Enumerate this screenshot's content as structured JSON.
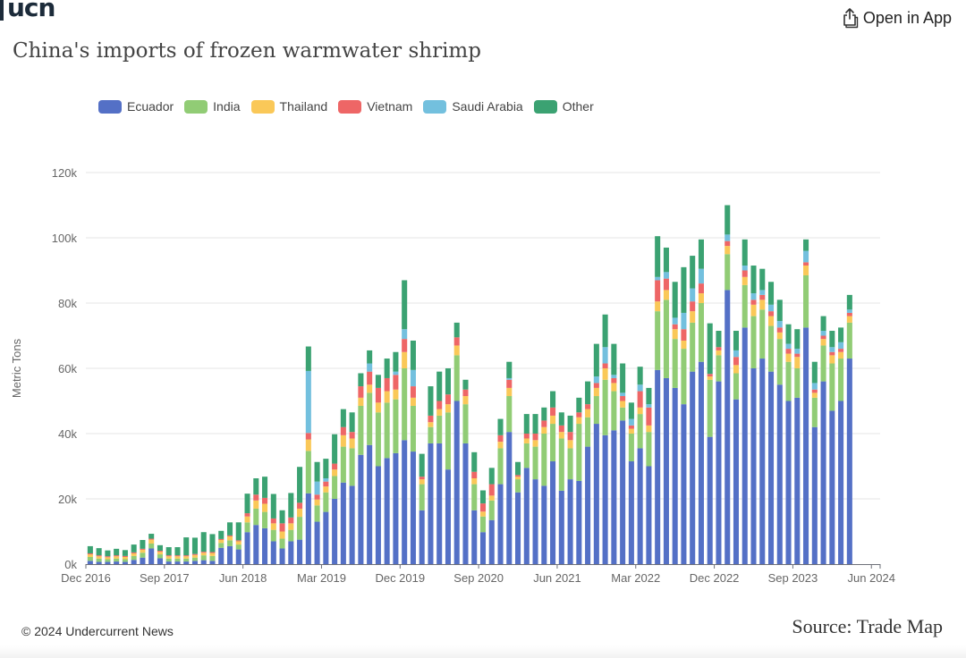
{
  "header": {
    "logo_text": "ucn",
    "open_app_label": "Open in App"
  },
  "footer": {
    "copyright": "© 2024 Undercurrent News",
    "source": "Source: Trade Map"
  },
  "chart_data": {
    "type": "bar",
    "stacked": true,
    "title": "China's imports of frozen warmwater shrimp",
    "xlabel": "",
    "ylabel": "Metric Tons",
    "ylim": [
      0,
      120000
    ],
    "yticks": [
      0,
      20000,
      40000,
      60000,
      80000,
      100000,
      120000
    ],
    "ytick_labels": [
      "0k",
      "20k",
      "40k",
      "60k",
      "80k",
      "100k",
      "120k"
    ],
    "grid": true,
    "legend_position": "top-left",
    "start_month": "Dec 2016",
    "end_month": "Jun 2024",
    "xtick_labels": [
      "Dec 2016",
      "Sep 2017",
      "Jun 2018",
      "Mar 2019",
      "Dec 2019",
      "Sep 2020",
      "Jun 2021",
      "Mar 2022",
      "Dec 2022",
      "Sep 2023",
      "Jun 2024"
    ],
    "xtick_every_n_months": 9,
    "series": [
      {
        "name": "Ecuador",
        "color": "#5470c6",
        "values": [
          1000,
          700,
          700,
          800,
          700,
          1300,
          2000,
          4800,
          1800,
          800,
          800,
          800,
          1000,
          1200,
          1000,
          5000,
          5500,
          4500,
          9800,
          12000,
          11000,
          7000,
          4800,
          7000,
          7500,
          21700,
          13000,
          16000,
          20000,
          25000,
          24000,
          33500,
          36500,
          30000,
          32500,
          34000,
          38000,
          34500,
          16500,
          37000,
          37000,
          29000,
          50000,
          37000,
          16500,
          9800,
          13500,
          24500,
          40500,
          22000,
          29500,
          26000,
          24000,
          31500,
          22500,
          26000,
          25500,
          36000,
          43000,
          39500,
          41000,
          44000,
          31500,
          35500,
          30000,
          59500,
          57000,
          54000,
          49000,
          59000,
          62000,
          39000,
          56000,
          84000,
          50500,
          72500,
          60000,
          63000,
          59000,
          55000,
          50000,
          51000,
          72500,
          42000,
          56000,
          47000,
          50000,
          63000,
          0,
          0,
          0
        ]
      },
      {
        "name": "India",
        "color": "#91cc75",
        "values": [
          1200,
          1000,
          800,
          900,
          800,
          1200,
          1500,
          1500,
          1200,
          900,
          900,
          900,
          1000,
          1500,
          1500,
          1500,
          1800,
          1500,
          3000,
          5000,
          5000,
          3500,
          3000,
          3500,
          7000,
          13000,
          5000,
          6000,
          7000,
          11000,
          11500,
          15000,
          16000,
          16500,
          17000,
          16500,
          22000,
          14000,
          8000,
          5000,
          8500,
          17500,
          14000,
          12000,
          8000,
          4800,
          6000,
          11000,
          11000,
          4000,
          7500,
          10000,
          16000,
          11500,
          16000,
          9500,
          17500,
          9000,
          8500,
          17000,
          12000,
          4000,
          8500,
          10500,
          10500,
          18000,
          24000,
          15000,
          17000,
          15000,
          18000,
          17500,
          8000,
          11000,
          8000,
          13000,
          16000,
          15000,
          14000,
          14000,
          12000,
          9000,
          16000,
          9000,
          11000,
          14500,
          13000,
          11000,
          0,
          0,
          0
        ]
      },
      {
        "name": "Thailand",
        "color": "#fac858",
        "values": [
          800,
          700,
          600,
          700,
          700,
          800,
          900,
          1200,
          800,
          700,
          700,
          700,
          800,
          800,
          900,
          900,
          1200,
          1000,
          1800,
          2500,
          2500,
          2000,
          2200,
          2000,
          2500,
          3500,
          1800,
          1800,
          2000,
          3500,
          3000,
          2500,
          2500,
          3000,
          3500,
          3000,
          5000,
          2500,
          1500,
          1500,
          2000,
          2500,
          3000,
          2500,
          1800,
          1500,
          1500,
          2000,
          2500,
          800,
          1500,
          2000,
          2000,
          2500,
          2000,
          2500,
          2000,
          2500,
          2500,
          3500,
          2500,
          2000,
          1500,
          2000,
          2000,
          3000,
          3000,
          3000,
          2500,
          3500,
          3000,
          1000,
          1500,
          2500,
          2500,
          2500,
          3500,
          3000,
          3000,
          2000,
          2500,
          3500,
          3000,
          1500,
          2000,
          2500,
          2000,
          2000,
          0,
          0,
          0
        ]
      },
      {
        "name": "Vietnam",
        "color": "#ee6666",
        "values": [
          300,
          300,
          300,
          300,
          300,
          300,
          300,
          300,
          300,
          300,
          300,
          300,
          300,
          300,
          300,
          300,
          300,
          300,
          1000,
          1800,
          1800,
          1500,
          2500,
          1800,
          1800,
          2000,
          1500,
          1500,
          1800,
          2500,
          2000,
          3500,
          4000,
          4500,
          4000,
          4500,
          4000,
          3500,
          800,
          2000,
          2500,
          3000,
          2500,
          2000,
          2000,
          2500,
          3500,
          2000,
          2500,
          500,
          1500,
          2000,
          2000,
          2500,
          2000,
          2500,
          1500,
          1500,
          1500,
          1500,
          1500,
          1500,
          1000,
          5000,
          5500,
          6500,
          3500,
          1500,
          3500,
          3000,
          3000,
          800,
          1000,
          1500,
          2500,
          2000,
          1500,
          1500,
          1500,
          1500,
          1500,
          1000,
          1000,
          1000,
          1000,
          1000,
          1000,
          1000,
          0,
          0,
          0
        ]
      },
      {
        "name": "Saudi Arabia",
        "color": "#73c0de",
        "values": [
          0,
          0,
          0,
          0,
          0,
          0,
          0,
          0,
          0,
          0,
          0,
          0,
          0,
          0,
          0,
          0,
          0,
          0,
          0,
          0,
          0,
          0,
          0,
          0,
          0,
          19000,
          4000,
          1000,
          0,
          0,
          0,
          0,
          2500,
          0,
          0,
          1000,
          3000,
          5000,
          0,
          0,
          0,
          0,
          0,
          0,
          0,
          0,
          0,
          0,
          500,
          0,
          0,
          0,
          0,
          0,
          0,
          0,
          0,
          0,
          2000,
          5000,
          1000,
          1000,
          2000,
          2000,
          1000,
          1000,
          2000,
          2000,
          5000,
          4000,
          4500,
          0,
          0,
          2000,
          2000,
          1500,
          2000,
          1500,
          2000,
          2000,
          1500,
          1500,
          3500,
          2000,
          1500,
          1500,
          2000,
          1000,
          0,
          0,
          0
        ]
      },
      {
        "name": "Other",
        "color": "#3ba272",
        "values": [
          2200,
          2200,
          1800,
          2000,
          1800,
          2400,
          2700,
          1500,
          1700,
          2500,
          2500,
          5500,
          5000,
          6000,
          5500,
          2500,
          4000,
          5500,
          6000,
          5000,
          6500,
          7500,
          4000,
          7500,
          11000,
          7500,
          6000,
          6000,
          9000,
          5500,
          6000,
          4000,
          4000,
          4000,
          6000,
          6000,
          15000,
          9000,
          7000,
          9000,
          9000,
          8000,
          4500,
          3000,
          6000,
          4000,
          5000,
          5000,
          5000,
          4000,
          6000,
          6000,
          4000,
          5000,
          4000,
          5000,
          4500,
          7000,
          10000,
          10000,
          9500,
          9000,
          5000,
          5500,
          5000,
          12500,
          7500,
          11000,
          14000,
          10000,
          9000,
          15500,
          5000,
          9000,
          6000,
          8000,
          8500,
          6500,
          7000,
          6500,
          6000,
          6000,
          3500,
          6500,
          4500,
          5000,
          4500,
          4500,
          0,
          0,
          0
        ]
      }
    ]
  }
}
